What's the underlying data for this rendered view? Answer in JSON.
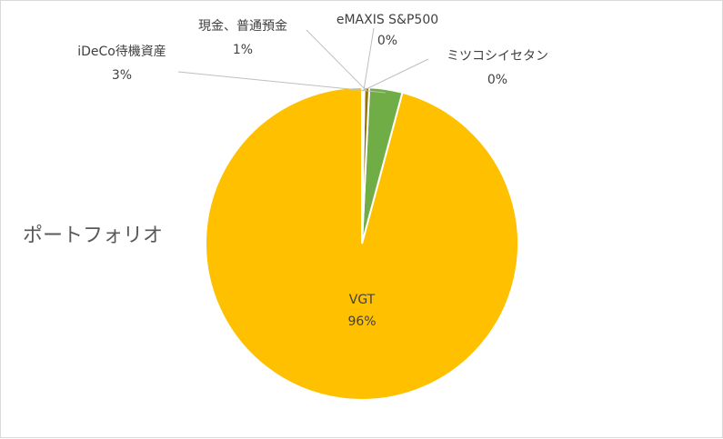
{
  "chart_data": {
    "type": "pie",
    "title": "ポートフォリオ",
    "slices": [
      {
        "label": "VGT",
        "pct_label": "96%",
        "value": 95.6,
        "color": "#FFC000"
      },
      {
        "label": "iDeCo待機資産",
        "pct_label": "3%",
        "value": 3.4,
        "color": "#70AD47"
      },
      {
        "label": "現金、普通預金",
        "pct_label": "1%",
        "value": 0.5,
        "color": "#997300"
      },
      {
        "label": "eMAXIS S&P500",
        "pct_label": "0%",
        "value": 0.15,
        "color": "#4472C4"
      },
      {
        "label": "ミツコシイセタン",
        "pct_label": "0%",
        "value": 0.1,
        "color": "#A5A5A5"
      }
    ],
    "legend": "none",
    "data_labels": "category-and-percentage"
  }
}
